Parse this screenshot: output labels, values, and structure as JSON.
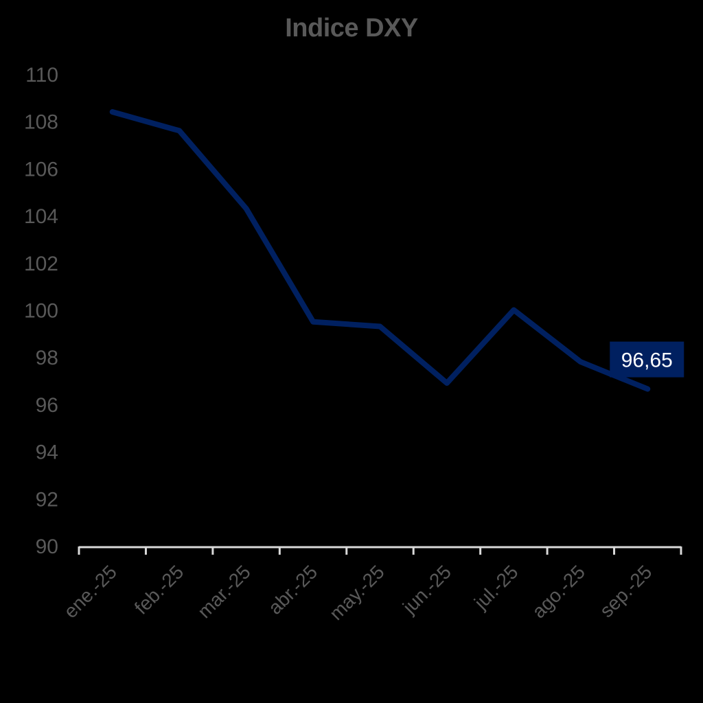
{
  "chart_data": {
    "type": "line",
    "title": "Indice DXY",
    "xlabel": "",
    "ylabel": "",
    "categories": [
      "ene.-25",
      "feb.-25",
      "mar.-25",
      "abr.-25",
      "may.-25",
      "jun.-25",
      "jul.-25",
      "ago.-25",
      "sep.-25"
    ],
    "series": [
      {
        "name": "Indice DXY",
        "values": [
          108.4,
          107.6,
          104.3,
          99.5,
          99.3,
          96.9,
          100.0,
          97.8,
          96.65
        ],
        "color": "#002060"
      }
    ],
    "ylim": [
      90,
      110
    ],
    "yticks": [
      90,
      92,
      94,
      96,
      98,
      100,
      102,
      104,
      106,
      108,
      110
    ],
    "grid": false,
    "legend": null,
    "annotations": [
      {
        "category": "sep.-25",
        "text": "96,65",
        "background": "#002060",
        "color": "#ffffff"
      }
    ]
  },
  "style": {
    "background": "#000000",
    "text_color": "#595959",
    "axis_color": "#d9d9d9",
    "line_color": "#002060"
  }
}
